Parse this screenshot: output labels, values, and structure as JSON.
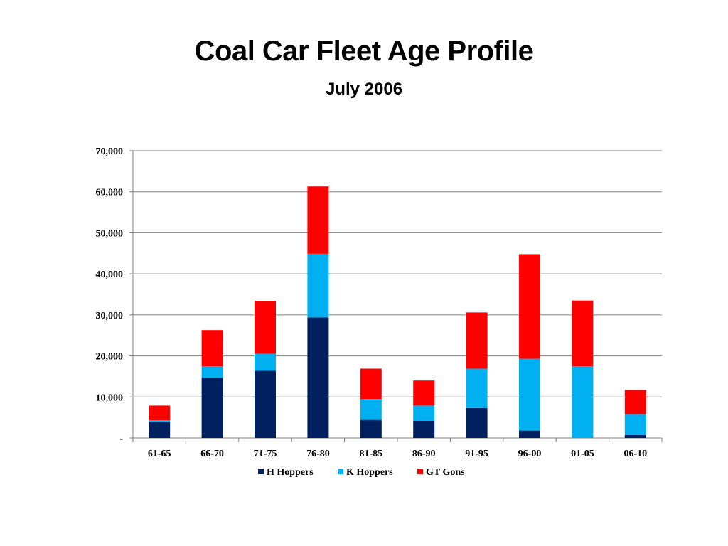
{
  "slide": {
    "title": "Coal Car Fleet Age Profile",
    "subtitle": "July 2006"
  },
  "chart_data": {
    "type": "bar",
    "stacked": true,
    "title": "",
    "xlabel": "",
    "ylabel": "",
    "categories": [
      "61-65",
      "66-70",
      "71-75",
      "76-80",
      "81-85",
      "86-90",
      "91-95",
      "96-00",
      "01-05",
      "06-10"
    ],
    "series": [
      {
        "name": "H Hoppers",
        "color": "#002060",
        "values": [
          3900,
          14700,
          16400,
          29400,
          4400,
          4200,
          7300,
          1800,
          0,
          700
        ]
      },
      {
        "name": "K Hoppers",
        "color": "#00B0F0",
        "values": [
          400,
          2800,
          4100,
          15500,
          5100,
          3700,
          9600,
          17500,
          17500,
          5100
        ]
      },
      {
        "name": "GT Gons",
        "color": "#FF0000",
        "values": [
          3600,
          8800,
          12900,
          16400,
          7400,
          6100,
          13700,
          25500,
          16000,
          5900
        ]
      }
    ],
    "ylim": [
      0,
      70000
    ],
    "yticks": [
      {
        "value": 0,
        "label": "-"
      },
      {
        "value": 10000,
        "label": "10,000"
      },
      {
        "value": 20000,
        "label": "20,000"
      },
      {
        "value": 30000,
        "label": "30,000"
      },
      {
        "value": 40000,
        "label": "40,000"
      },
      {
        "value": 50000,
        "label": "50,000"
      },
      {
        "value": 60000,
        "label": "60,000"
      },
      {
        "value": 70000,
        "label": "70,000"
      }
    ],
    "grid": true,
    "legend_position": "bottom",
    "gridline_color": "#808080",
    "axis_color": "#808080"
  }
}
